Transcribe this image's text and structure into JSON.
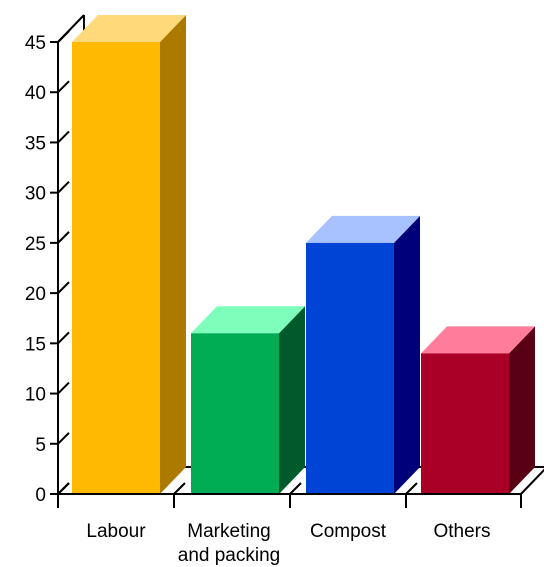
{
  "chart_data": {
    "type": "bar",
    "title": "",
    "xlabel": "",
    "ylabel": "",
    "ylim": [
      0,
      45
    ],
    "yticks": [
      0,
      5,
      10,
      15,
      20,
      25,
      30,
      35,
      40,
      45
    ],
    "categories": [
      "Labour",
      "Marketing and packing",
      "Compost",
      "Others"
    ],
    "category_lines": [
      [
        "Labour"
      ],
      [
        "Marketing",
        "and packing"
      ],
      [
        "Compost"
      ],
      [
        "Others"
      ]
    ],
    "values": [
      45,
      16,
      25,
      14
    ],
    "grid": false,
    "legend": "none",
    "style": "3d",
    "colors": [
      {
        "front": "#FFB900",
        "top": "#FFD97A",
        "side": "#AD7A00"
      },
      {
        "front": "#00AD55",
        "top": "#7DFFBB",
        "side": "#005A2B"
      },
      {
        "front": "#0044D6",
        "top": "#A8C1FF",
        "side": "#00007A"
      },
      {
        "front": "#AA0028",
        "top": "#FF7D9B",
        "side": "#5A0016"
      }
    ]
  }
}
